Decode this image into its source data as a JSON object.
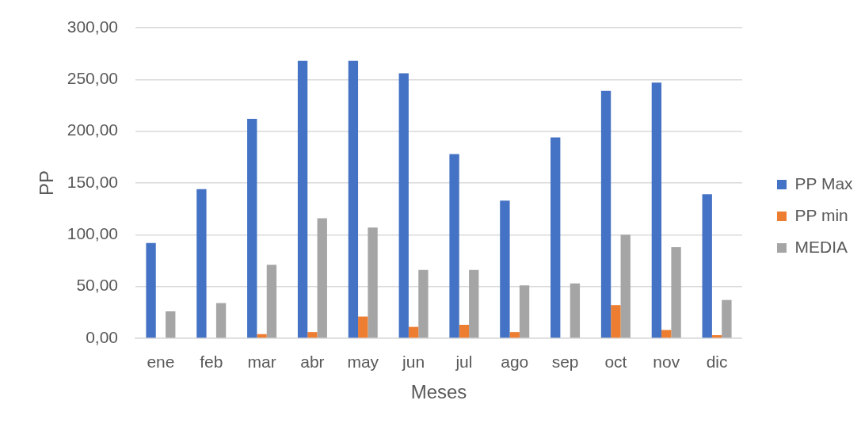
{
  "chart_data": {
    "type": "bar",
    "xlabel": "Meses",
    "ylabel": "PP",
    "categories": [
      "ene",
      "feb",
      "mar",
      "abr",
      "may",
      "jun",
      "jul",
      "ago",
      "sep",
      "oct",
      "nov",
      "dic"
    ],
    "series": [
      {
        "name": "PP Max",
        "color": "#4472c4",
        "values": [
          92,
          144,
          212,
          268,
          268,
          256,
          178,
          133,
          194,
          239,
          247,
          139
        ]
      },
      {
        "name": "PP min",
        "color": "#ed7d31",
        "values": [
          0,
          0,
          4,
          6,
          21,
          11,
          13,
          6,
          0,
          32,
          8,
          3
        ]
      },
      {
        "name": "MEDIA",
        "color": "#a5a5a5",
        "values": [
          26,
          34,
          71,
          116,
          107,
          66,
          66,
          51,
          53,
          100,
          88,
          37
        ]
      }
    ],
    "ylim": [
      0,
      300
    ],
    "yticks": [
      {
        "value": 0,
        "label": "0,00"
      },
      {
        "value": 50,
        "label": "50,00"
      },
      {
        "value": 100,
        "label": "100,00"
      },
      {
        "value": 150,
        "label": "150,00"
      },
      {
        "value": 200,
        "label": "200,00"
      },
      {
        "value": 250,
        "label": "250,00"
      },
      {
        "value": 300,
        "label": "300,00"
      }
    ],
    "grid": "y",
    "legend": "right"
  }
}
